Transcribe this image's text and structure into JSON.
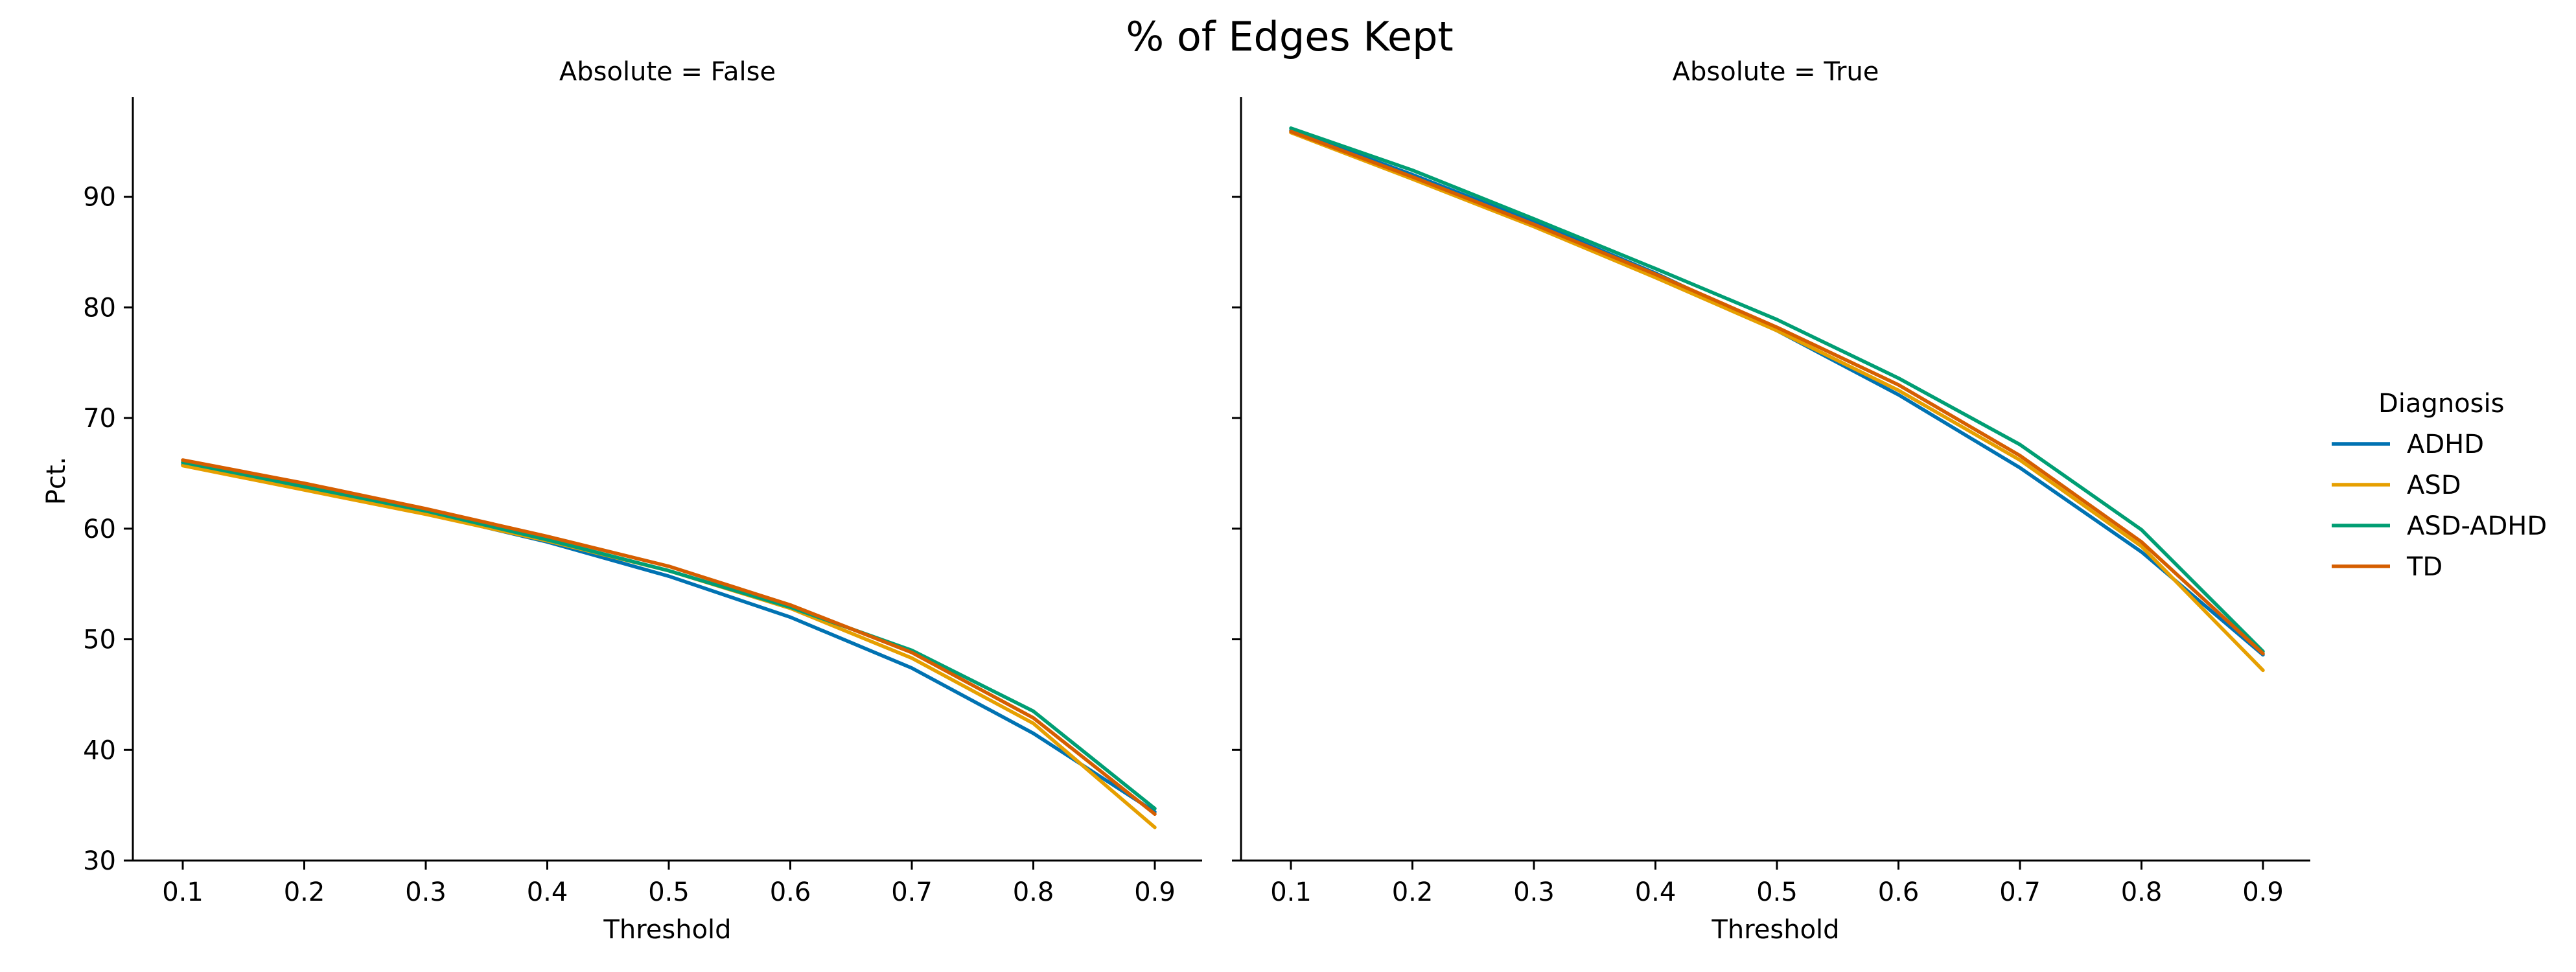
{
  "figure_title": "% of Edges Kept",
  "colors": {
    "ADHD": "#0072b2",
    "ASD": "#e69f00",
    "ASD-ADHD": "#009e73",
    "TD": "#d55e00"
  },
  "legend": {
    "title": "Diagnosis",
    "entries": [
      "ADHD",
      "ASD",
      "ASD-ADHD",
      "TD"
    ]
  },
  "chart_data": [
    {
      "type": "line",
      "title": "Absolute = False",
      "xlabel": "Threshold",
      "ylabel": "Pct.",
      "x": [
        0.1,
        0.2,
        0.3,
        0.4,
        0.5,
        0.6,
        0.7,
        0.8,
        0.9
      ],
      "xticks": [
        "0.1",
        "0.2",
        "0.3",
        "0.4",
        "0.5",
        "0.6",
        "0.7",
        "0.8",
        "0.9"
      ],
      "yticks": [
        "30",
        "40",
        "50",
        "60",
        "70",
        "80",
        "90"
      ],
      "ylim": [
        30,
        99
      ],
      "series": [
        {
          "name": "ADHD",
          "values": [
            65.8,
            63.6,
            61.4,
            58.8,
            55.7,
            52.0,
            47.4,
            41.5,
            34.4
          ]
        },
        {
          "name": "ASD",
          "values": [
            65.7,
            63.5,
            61.3,
            58.9,
            56.2,
            52.8,
            48.3,
            42.4,
            33.0
          ]
        },
        {
          "name": "ASD-ADHD",
          "values": [
            66.0,
            63.8,
            61.6,
            59.0,
            56.2,
            52.9,
            49.0,
            43.5,
            34.7
          ]
        },
        {
          "name": "TD",
          "values": [
            66.2,
            64.1,
            61.8,
            59.3,
            56.6,
            53.1,
            48.8,
            42.9,
            34.2
          ]
        }
      ]
    },
    {
      "type": "line",
      "title": "Absolute = True",
      "xlabel": "Threshold",
      "ylabel": "",
      "x": [
        0.1,
        0.2,
        0.3,
        0.4,
        0.5,
        0.6,
        0.7,
        0.8,
        0.9
      ],
      "xticks": [
        "0.1",
        "0.2",
        "0.3",
        "0.4",
        "0.5",
        "0.6",
        "0.7",
        "0.8",
        "0.9"
      ],
      "yticks": [],
      "ylim": [
        30,
        99
      ],
      "series": [
        {
          "name": "ADHD",
          "values": [
            96.0,
            92.0,
            87.7,
            83.1,
            77.9,
            72.1,
            65.5,
            57.9,
            48.6
          ]
        },
        {
          "name": "ASD",
          "values": [
            95.8,
            91.6,
            87.3,
            82.7,
            77.9,
            72.5,
            66.2,
            58.4,
            47.2
          ]
        },
        {
          "name": "ASD-ADHD",
          "values": [
            96.2,
            92.4,
            88.0,
            83.5,
            78.9,
            73.6,
            67.6,
            59.9,
            48.9
          ]
        },
        {
          "name": "TD",
          "values": [
            95.9,
            91.8,
            87.5,
            83.0,
            78.2,
            73.0,
            66.6,
            58.8,
            48.7
          ]
        }
      ]
    }
  ]
}
